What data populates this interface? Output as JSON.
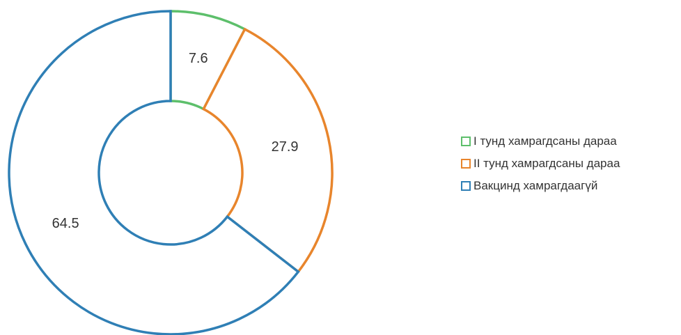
{
  "chart_data": {
    "type": "pie",
    "donut": true,
    "categories": [
      "I тунд хамрагдсаны дараа",
      "II тунд хамрагдсаны дараа",
      "Вакцинд хамрагдаагүй"
    ],
    "values": [
      7.6,
      27.9,
      64.5
    ],
    "data_labels": [
      "7.6",
      "27.9",
      "64.5"
    ],
    "colors": [
      "#5dbf6b",
      "#e8852c",
      "#2f7fb5"
    ],
    "title": "",
    "legend_position": "right"
  }
}
